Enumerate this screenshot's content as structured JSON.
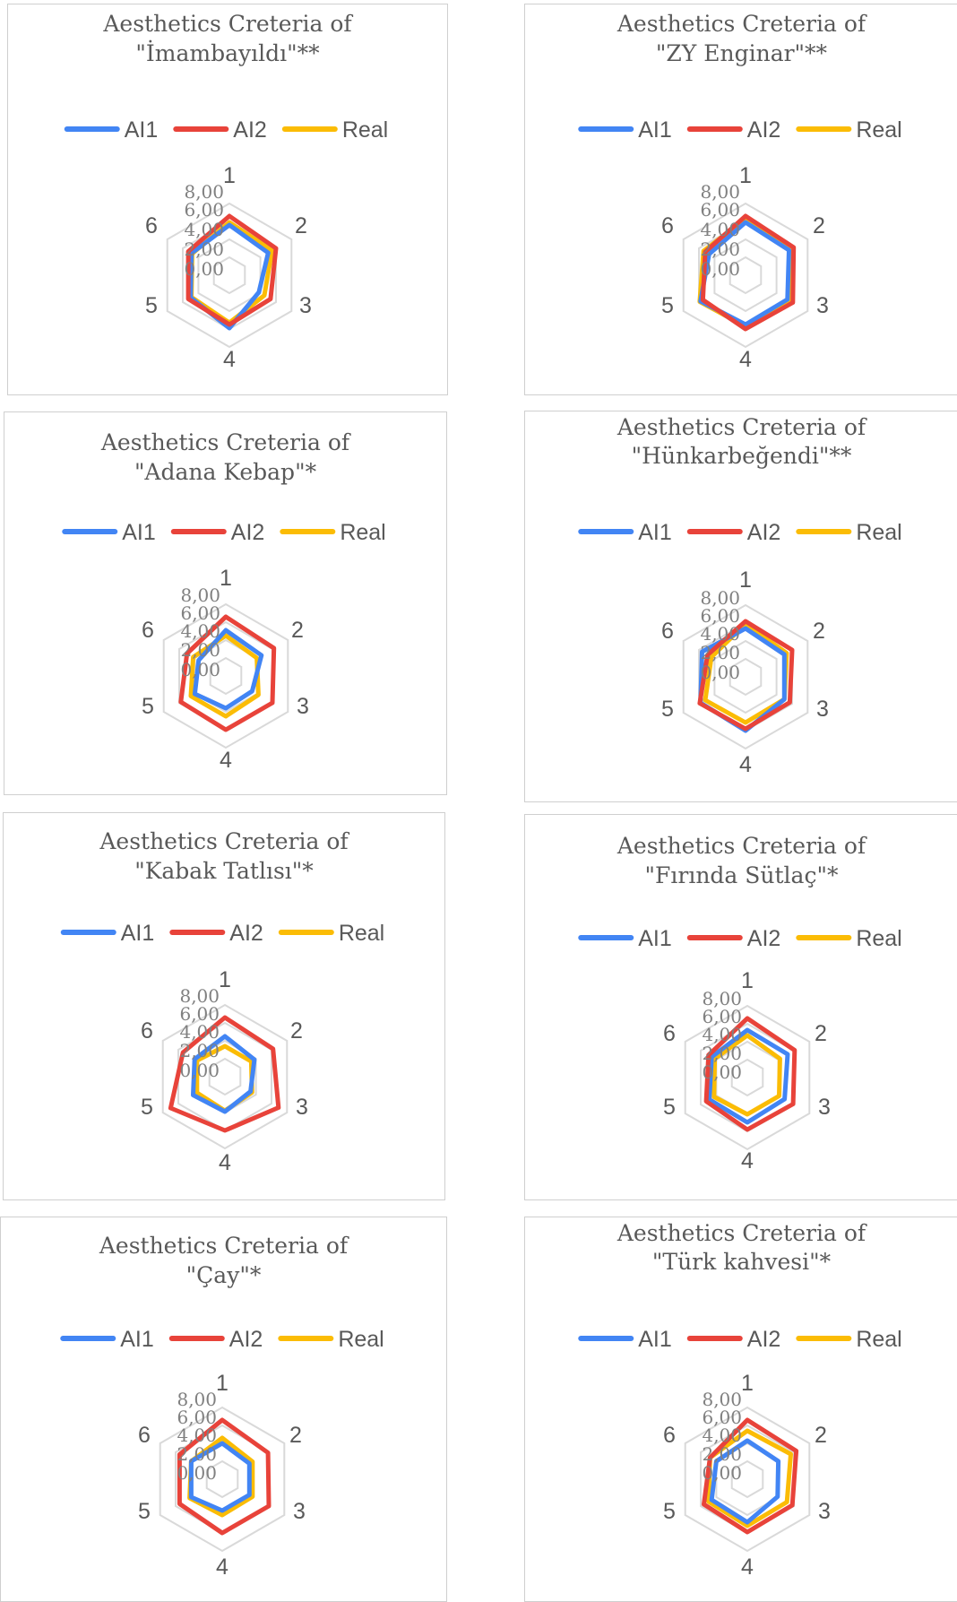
{
  "colors": {
    "AI1": "#4285f4",
    "AI2": "#e8433a",
    "Real": "#fbbc05",
    "grid": "#d9d9d9",
    "text": "#595959"
  },
  "chart_data": [
    {
      "type": "radar",
      "title_lines": [
        "Aesthetics Creteria of",
        "\"İmambayıldı\"**"
      ],
      "axes": [
        "1",
        "2",
        "3",
        "4",
        "5",
        "6"
      ],
      "ticks": [
        "0,00",
        "2,00",
        "4,00",
        "6,00",
        "8,00"
      ],
      "rlim": [
        0,
        8
      ],
      "legend": "top",
      "series": [
        {
          "name": "AI1",
          "values": [
            5.6,
            5.0,
            3.8,
            5.9,
            5.0,
            4.9
          ]
        },
        {
          "name": "AI2",
          "values": [
            6.6,
            6.0,
            5.3,
            5.5,
            5.3,
            5.3
          ]
        },
        {
          "name": "Real",
          "values": [
            5.9,
            5.5,
            4.5,
            5.3,
            4.9,
            4.8
          ]
        }
      ]
    },
    {
      "type": "radar",
      "title_lines": [
        "Aesthetics Creteria of",
        "\"ZY Enginar\"**"
      ],
      "axes": [
        "1",
        "2",
        "3",
        "4",
        "5",
        "6"
      ],
      "ticks": [
        "0,00",
        "2,00",
        "4,00",
        "6,00",
        "8,00"
      ],
      "rlim": [
        0,
        8
      ],
      "legend": "top",
      "series": [
        {
          "name": "AI1",
          "values": [
            5.9,
            5.6,
            5.4,
            5.5,
            5.8,
            4.7
          ]
        },
        {
          "name": "AI2",
          "values": [
            6.6,
            6.2,
            6.1,
            6.0,
            5.5,
            5.2
          ]
        },
        {
          "name": "Real",
          "values": [
            6.3,
            5.9,
            5.7,
            5.7,
            5.9,
            5.4
          ]
        }
      ]
    },
    {
      "type": "radar",
      "title_lines": [
        "Aesthetics Creteria of",
        "\"Adana Kebap\"*"
      ],
      "axes": [
        "1",
        "2",
        "3",
        "4",
        "5",
        "6"
      ],
      "ticks": [
        "0,00",
        "2,00",
        "4,00",
        "6,00",
        "8,00"
      ],
      "rlim": [
        0,
        8
      ],
      "legend": "top",
      "series": [
        {
          "name": "AI1",
          "values": [
            5.1,
            4.6,
            3.4,
            3.6,
            4.0,
            3.5
          ]
        },
        {
          "name": "AI2",
          "values": [
            6.6,
            6.2,
            6.0,
            6.0,
            5.8,
            5.0
          ]
        },
        {
          "name": "Real",
          "values": [
            4.5,
            4.0,
            4.2,
            4.5,
            4.5,
            4.2
          ]
        }
      ]
    },
    {
      "type": "radar",
      "title_lines": [
        "Aesthetics Creteria of",
        "\"Hünkarbeğendi\"**"
      ],
      "axes": [
        "1",
        "2",
        "3",
        "4",
        "5",
        "6"
      ],
      "ticks": [
        "0,00",
        "2,00",
        "4,00",
        "6,00",
        "8,00"
      ],
      "rlim": [
        0,
        8
      ],
      "legend": "top",
      "series": [
        {
          "name": "AI1",
          "values": [
            5.4,
            5.0,
            5.0,
            6.0,
            5.8,
            5.6
          ]
        },
        {
          "name": "AI2",
          "values": [
            6.2,
            6.0,
            5.7,
            5.8,
            5.9,
            4.9
          ]
        },
        {
          "name": "Real",
          "values": [
            5.9,
            5.3,
            5.0,
            5.1,
            5.2,
            4.4
          ]
        }
      ]
    },
    {
      "type": "radar",
      "title_lines": [
        "Aesthetics Creteria of",
        "\"Kabak Tatlısı\"*"
      ],
      "axes": [
        "1",
        "2",
        "3",
        "4",
        "5",
        "6"
      ],
      "ticks": [
        "0,00",
        "2,00",
        "4,00",
        "6,00",
        "8,00"
      ],
      "rlim": [
        0,
        8
      ],
      "legend": "top",
      "series": [
        {
          "name": "AI1",
          "values": [
            4.5,
            3.8,
            3.3,
            3.9,
            4.1,
            3.9
          ]
        },
        {
          "name": "AI2",
          "values": [
            6.6,
            6.2,
            6.9,
            6.0,
            7.0,
            5.4
          ]
        },
        {
          "name": "Real",
          "values": [
            3.4,
            3.4,
            3.5,
            3.8,
            3.6,
            3.6
          ]
        }
      ]
    },
    {
      "type": "radar",
      "title_lines": [
        "Aesthetics Creteria of",
        "\"Fırında Sütlaç\"*"
      ],
      "axes": [
        "1",
        "2",
        "3",
        "4",
        "5",
        "6"
      ],
      "ticks": [
        "0,00",
        "2,00",
        "4,00",
        "6,00",
        "8,00"
      ],
      "rlim": [
        0,
        8
      ],
      "legend": "top",
      "series": [
        {
          "name": "AI1",
          "values": [
            5.3,
            5.2,
            4.8,
            5.0,
            4.9,
            4.6
          ]
        },
        {
          "name": "AI2",
          "values": [
            6.6,
            6.1,
            5.9,
            5.8,
            5.3,
            5.0
          ]
        },
        {
          "name": "Real",
          "values": [
            4.7,
            4.2,
            4.1,
            4.1,
            4.3,
            4.2
          ]
        }
      ]
    },
    {
      "type": "radar",
      "title_lines": [
        "Aesthetics Creteria of",
        "\"Çay\"*"
      ],
      "axes": [
        "1",
        "2",
        "3",
        "4",
        "5",
        "6"
      ],
      "ticks": [
        "0,00",
        "2,00",
        "4,00",
        "6,00",
        "8,00"
      ],
      "rlim": [
        0,
        8
      ],
      "legend": "top",
      "series": [
        {
          "name": "AI1",
          "values": [
            4.0,
            3.5,
            3.5,
            3.5,
            4.0,
            4.0
          ]
        },
        {
          "name": "AI2",
          "values": [
            6.6,
            5.9,
            6.0,
            6.0,
            5.5,
            5.5
          ]
        },
        {
          "name": "Real",
          "values": [
            4.6,
            3.9,
            3.9,
            4.0,
            4.2,
            4.0
          ]
        }
      ]
    },
    {
      "type": "radar",
      "title_lines": [
        "Aesthetics Creteria of",
        "\"Türk kahvesi\"*"
      ],
      "axes": [
        "1",
        "2",
        "3",
        "4",
        "5",
        "6"
      ],
      "ticks": [
        "0,00",
        "2,00",
        "4,00",
        "6,00",
        "8,00"
      ],
      "rlim": [
        0,
        8
      ],
      "legend": "top",
      "series": [
        {
          "name": "AI1",
          "values": [
            4.3,
            4.0,
            3.9,
            4.8,
            4.6,
            4.0
          ]
        },
        {
          "name": "AI2",
          "values": [
            6.6,
            6.3,
            5.8,
            5.9,
            5.6,
            4.8
          ]
        },
        {
          "name": "Real",
          "values": [
            5.4,
            5.6,
            5.1,
            5.2,
            5.0,
            4.8
          ]
        }
      ]
    }
  ]
}
